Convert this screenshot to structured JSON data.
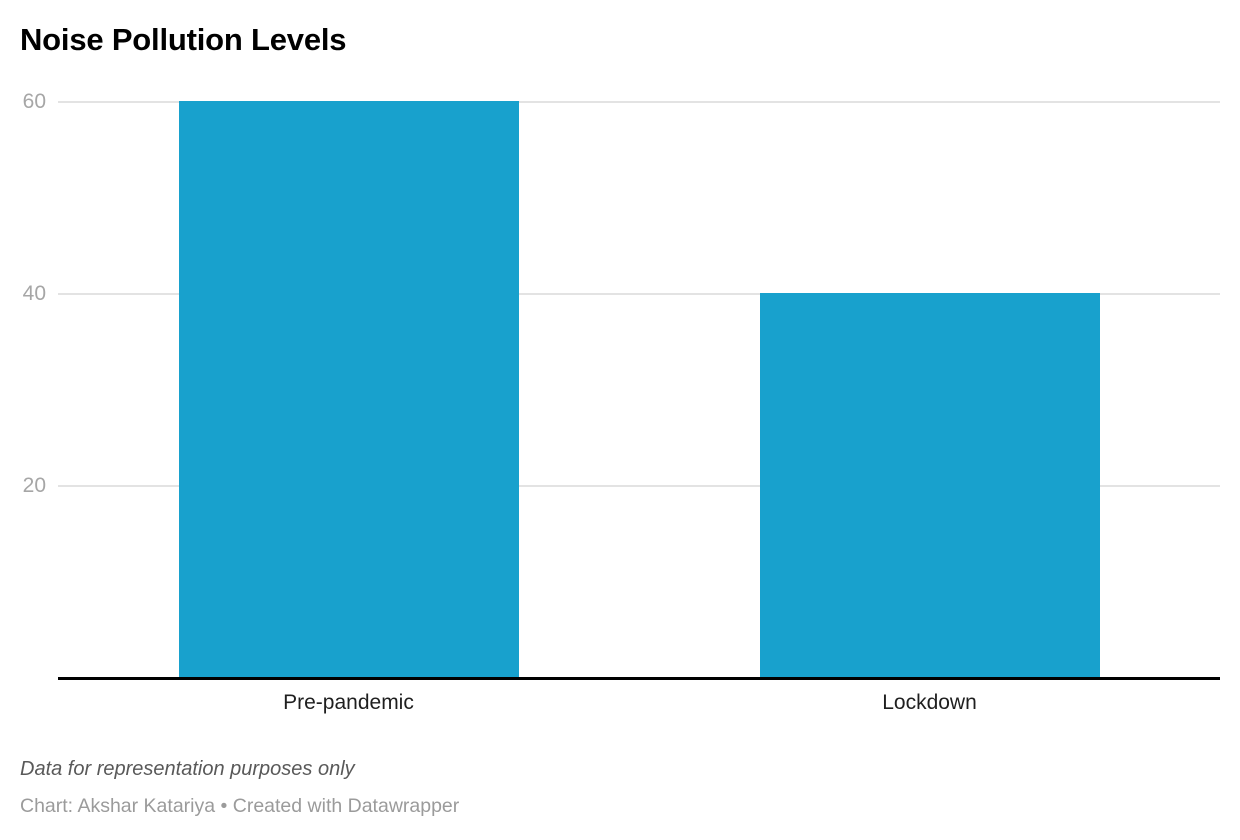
{
  "chart_data": {
    "type": "bar",
    "title": "Noise Pollution Levels",
    "categories": [
      "Pre-pandemic",
      "Lockdown"
    ],
    "values": [
      60,
      40
    ],
    "xlabel": "",
    "ylabel": "",
    "ylim": [
      0,
      60
    ],
    "yticks": [
      20,
      40,
      60
    ],
    "grid": true,
    "legend": "none",
    "bar_color": "#18a1cd",
    "gridline_color": "#e3e3e3",
    "axis_line_color": "#000000",
    "tick_label_color": "#a6a6a6",
    "category_label_color": "#1f1f1f"
  },
  "footer": {
    "note": "Data for representation purposes only",
    "byline": "Chart: Akshar Katariya • Created with Datawrapper"
  }
}
